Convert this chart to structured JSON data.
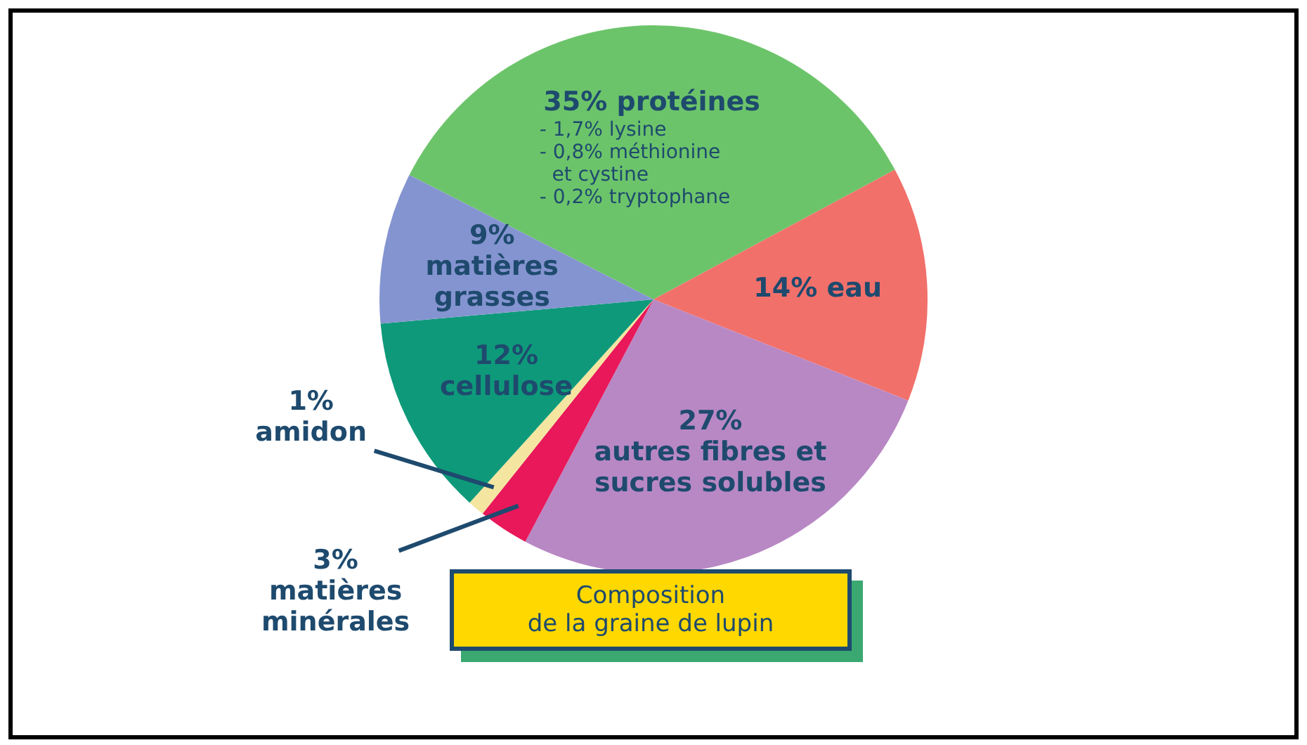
{
  "chart_data": {
    "type": "pie",
    "title": "Composition\nde la graine de lupin",
    "categories": [
      "35% protéines",
      "14% eau",
      "27%\nautres fibres et\nsucres solubles",
      "3%\nmatières\nminérales",
      "1%\namidon",
      "12%\ncellulose",
      "9%\nmatières\ngrasses"
    ],
    "values": [
      35,
      14,
      27,
      3,
      1,
      12,
      9
    ],
    "colors": [
      "#6cc46a",
      "#f2706a",
      "#b888c4",
      "#e8185a",
      "#f4e6a0",
      "#0e9a7a",
      "#8494d0"
    ],
    "annotations": [
      "- 1,7% lysine",
      "- 0,8% méthionine\n  et cystine",
      "- 0,2% tryptophane"
    ],
    "legend": false
  }
}
